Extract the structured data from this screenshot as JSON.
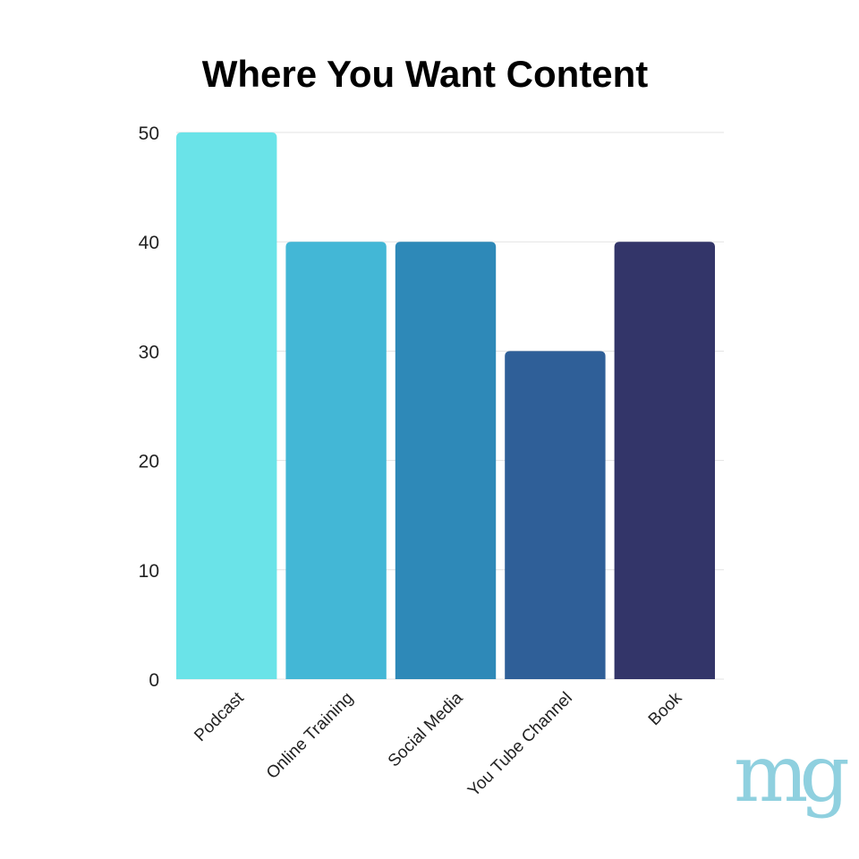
{
  "chart_data": {
    "type": "bar",
    "title": "Where You Want Content",
    "xlabel": "",
    "ylabel": "",
    "categories": [
      "Podcast",
      "Online Training",
      "Social Media",
      "You Tube Channel",
      "Book"
    ],
    "values": [
      50,
      40,
      40,
      30,
      40
    ],
    "colors": [
      "#6ae3e8",
      "#43b7d6",
      "#2e89b8",
      "#2f5f98",
      "#333569"
    ],
    "ylim": [
      0,
      50
    ],
    "yticks": [
      "0",
      "10",
      "20",
      "30",
      "40",
      "50"
    ],
    "grid": true,
    "legend": "none"
  },
  "logo": {
    "text": "mg",
    "color": "#8fd0df"
  }
}
